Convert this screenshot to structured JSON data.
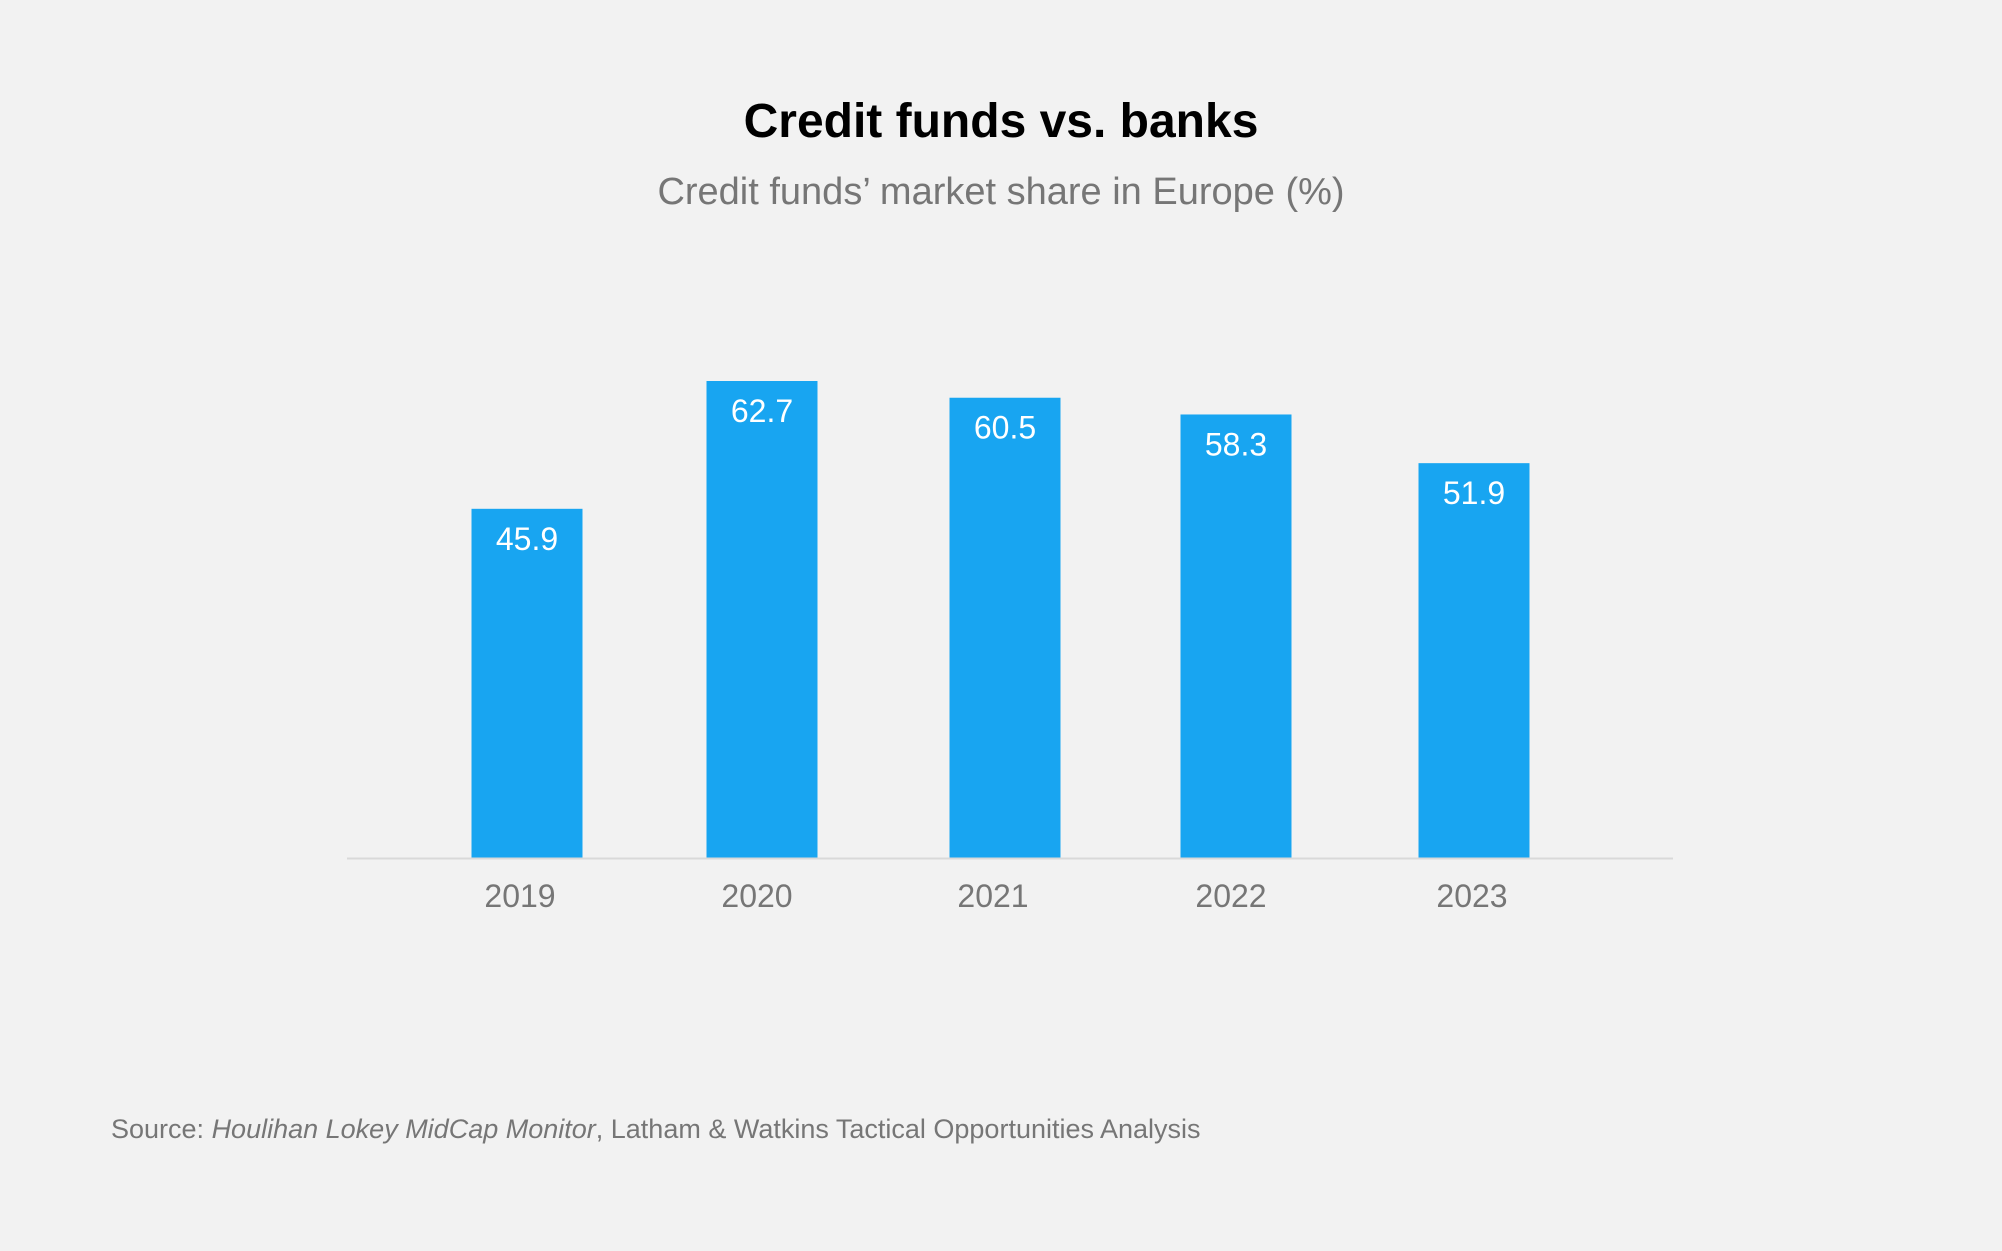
{
  "source": {
    "prefix": "Source: ",
    "publication": "Houlihan Lokey MidCap Monitor",
    "suffix": ", Latham & Watkins Tactical Opportunities Analysis"
  },
  "colors": {
    "background": "#f2f2f2",
    "bar": "#18a5f1",
    "baseline": "#d9d9d9",
    "muted_text": "#767676"
  },
  "chart_data": {
    "type": "bar",
    "title": "Credit funds vs. banks",
    "subtitle": "Credit funds’ market share in Europe (%)",
    "xlabel": "",
    "ylabel": "",
    "categories": [
      "2019",
      "2020",
      "2021",
      "2022",
      "2023"
    ],
    "values": [
      45.9,
      62.7,
      60.5,
      58.3,
      51.9
    ],
    "data_labels": [
      "45.9",
      "62.7",
      "60.5",
      "58.3",
      "51.9"
    ],
    "ylim": [
      0,
      62.7
    ],
    "grid": false,
    "legend": "none"
  }
}
